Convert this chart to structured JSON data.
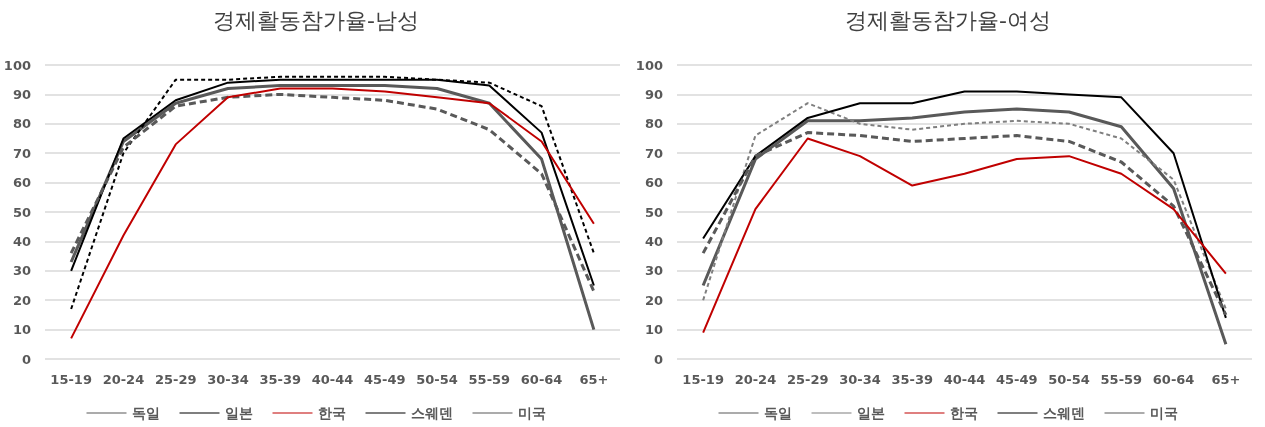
{
  "chart_data": [
    {
      "type": "line",
      "title": "경제활동참가율-남성",
      "categories": [
        "15-19",
        "20-24",
        "25-29",
        "30-34",
        "35-39",
        "40-44",
        "45-49",
        "50-54",
        "55-59",
        "60-64",
        "65+"
      ],
      "ylim": [
        0,
        100
      ],
      "yticks": [
        0,
        10,
        20,
        30,
        40,
        50,
        60,
        70,
        80,
        90,
        100
      ],
      "grid": "y",
      "legend": "bottom",
      "marker": "none",
      "series": [
        {
          "name": "독일",
          "color": "#595959",
          "line_style": "solid",
          "values": [
            33,
            74,
            87,
            92,
            93,
            93,
            93,
            92,
            87,
            68,
            10
          ]
        },
        {
          "name": "일본",
          "color": "#000000",
          "line_style": "dashed",
          "values": [
            17,
            70,
            95,
            95,
            96,
            96,
            96,
            95,
            94,
            86,
            36
          ]
        },
        {
          "name": "한국",
          "color": "#c00000",
          "line_style": "solid",
          "values": [
            7,
            42,
            73,
            89,
            92,
            92,
            91,
            89,
            87,
            74,
            46
          ]
        },
        {
          "name": "스웨덴",
          "color": "#000000",
          "line_style": "solid",
          "values": [
            30,
            75,
            88,
            94,
            95,
            95,
            95,
            95,
            93,
            77,
            25
          ]
        },
        {
          "name": "미국",
          "color": "#595959",
          "line_style": "dashed",
          "values": [
            36,
            72,
            86,
            89,
            90,
            89,
            88,
            85,
            78,
            63,
            23
          ]
        }
      ]
    },
    {
      "type": "line",
      "title": "경제활동참가율-여성",
      "categories": [
        "15-19",
        "20-24",
        "25-29",
        "30-34",
        "35-39",
        "40-44",
        "45-49",
        "50-54",
        "55-59",
        "60-64",
        "65+"
      ],
      "ylim": [
        0,
        100
      ],
      "yticks": [
        0,
        10,
        20,
        30,
        40,
        50,
        60,
        70,
        80,
        90,
        100
      ],
      "grid": "y",
      "legend": "bottom",
      "marker": "none",
      "series": [
        {
          "name": "독일",
          "color": "#595959",
          "line_style": "solid",
          "values": [
            25,
            68,
            81,
            81,
            82,
            84,
            85,
            84,
            79,
            58,
            5
          ]
        },
        {
          "name": "일본",
          "color": "#7f7f7f",
          "line_style": "dashed",
          "values": [
            20,
            76,
            87,
            80,
            78,
            80,
            81,
            80,
            75,
            61,
            17
          ]
        },
        {
          "name": "한국",
          "color": "#c00000",
          "line_style": "solid",
          "values": [
            9,
            51,
            75,
            69,
            59,
            63,
            68,
            69,
            63,
            51,
            29
          ]
        },
        {
          "name": "스웨덴",
          "color": "#000000",
          "line_style": "solid",
          "values": [
            41,
            69,
            82,
            87,
            87,
            91,
            91,
            90,
            89,
            70,
            14
          ]
        },
        {
          "name": "미국",
          "color": "#595959",
          "line_style": "dashed",
          "values": [
            36,
            69,
            77,
            76,
            74,
            75,
            76,
            74,
            67,
            52,
            15
          ]
        }
      ]
    }
  ]
}
